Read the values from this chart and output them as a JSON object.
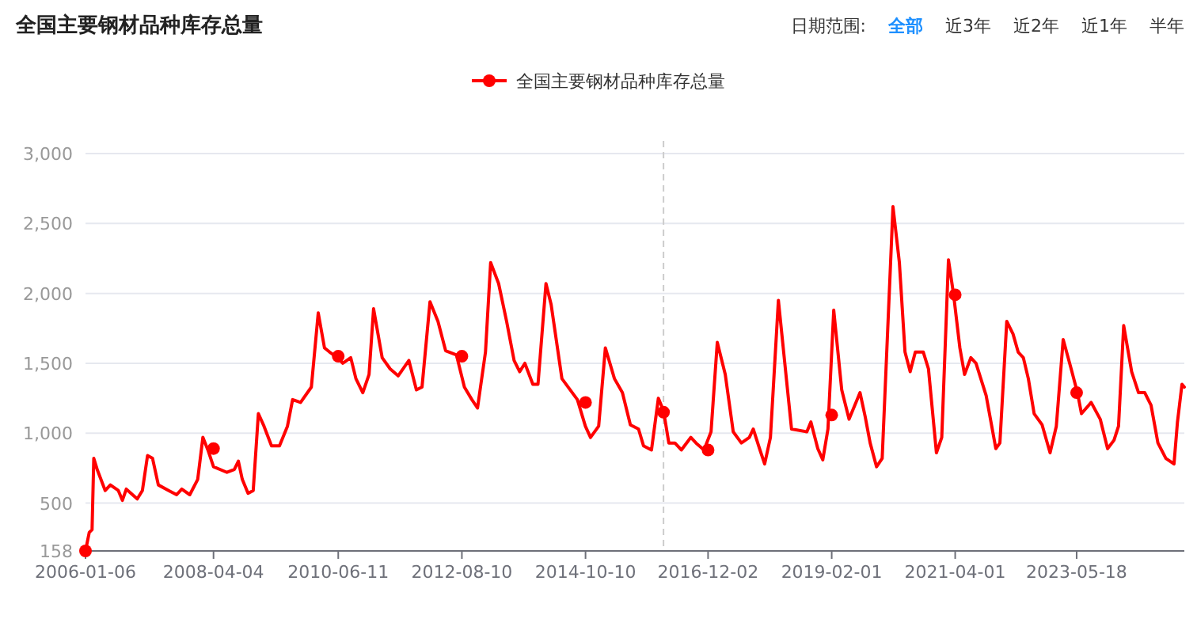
{
  "chart_data": {
    "type": "line",
    "title": "全国主要钢材品种库存总量",
    "annotations": [
      "日期范围:",
      "全部",
      "近3年",
      "近2年",
      "近1年",
      "半年"
    ],
    "legend": "top",
    "grid": "y",
    "line_style": "solid",
    "ylim": [
      158,
      3000
    ],
    "yticks": [
      158,
      500,
      {
        "value": 1000,
        "label": "1,000"
      },
      {
        "value": 1500,
        "label": "1,500"
      },
      {
        "value": 2000,
        "label": "2,000"
      },
      {
        "value": 2500,
        "label": "2,500"
      },
      {
        "value": 3000,
        "label": "3,000"
      }
    ],
    "xlim": [
      "2006-01-06",
      "2025-04-06"
    ],
    "xticks": [
      "2006-01-06",
      "2008-04-04",
      "2010-06-11",
      "2012-08-10",
      "2014-10-10",
      "2016-12-02",
      "2019-02-01",
      "2021-04-01",
      "2023-05-18"
    ],
    "ref_lines": [
      {
        "axis": "x",
        "value": "2016-02-21",
        "label": null,
        "color": "#cccccc",
        "line_style": "dashed"
      }
    ],
    "series": [
      {
        "name": "全国主要钢材品种库存总量",
        "color": "#ff0000",
        "x": [
          "2006-01-06",
          "2006-01-30",
          "2006-02-17",
          "2006-02-28",
          "2006-03-22",
          "2006-05-12",
          "2006-06-14",
          "2006-08-04",
          "2006-08-30",
          "2006-09-24",
          "2006-12-03",
          "2007-01-05",
          "2007-02-07",
          "2007-03-11",
          "2007-04-17",
          "2007-06-22",
          "2007-08-12",
          "2007-09-14",
          "2007-11-04",
          "2007-12-25",
          "2008-01-27",
          "2008-02-28",
          "2008-04-04",
          "2008-06-29",
          "2008-08-15",
          "2008-09-10",
          "2008-10-05",
          "2008-11-11",
          "2008-12-14",
          "2009-01-16",
          "2009-02-21",
          "2009-04-10",
          "2009-05-31",
          "2009-07-21",
          "2009-08-23",
          "2009-10-13",
          "2009-12-21",
          "2010-02-03",
          "2010-03-15",
          "2010-04-17",
          "2010-06-07",
          "2010-07-10",
          "2010-08-30",
          "2010-10-02",
          "2010-11-15",
          "2010-12-25",
          "2011-01-23",
          "2011-03-19",
          "2011-05-09",
          "2011-06-29",
          "2011-09-06",
          "2011-10-24",
          "2011-11-29",
          "2012-01-19",
          "2012-03-10",
          "2012-04-28",
          "2012-07-06",
          "2012-08-26",
          "2012-10-13",
          "2012-11-18",
          "2013-01-08",
          "2013-02-10",
          "2013-04-02",
          "2013-05-23",
          "2013-07-10",
          "2013-08-15",
          "2013-09-17",
          "2013-11-07",
          "2013-12-10",
          "2014-01-30",
          "2014-03-04",
          "2014-05-12",
          "2014-08-19",
          "2014-10-09",
          "2014-11-11",
          "2015-01-02",
          "2015-02-14",
          "2015-04-13",
          "2015-06-03",
          "2015-07-24",
          "2015-09-14",
          "2015-10-16",
          "2015-12-06",
          "2016-01-19",
          "2016-02-21",
          "2016-03-26",
          "2016-05-04",
          "2016-06-14",
          "2016-08-14",
          "2016-09-16",
          "2016-11-06",
          "2016-12-21",
          "2017-01-30",
          "2017-03-22",
          "2017-05-12",
          "2017-07-03",
          "2017-08-23",
          "2017-09-17",
          "2017-10-27",
          "2017-11-29",
          "2018-01-05",
          "2018-02-25",
          "2018-04-17",
          "2018-05-20",
          "2018-08-26",
          "2018-09-21",
          "2018-11-04",
          "2018-12-06",
          "2019-01-08",
          "2019-02-14",
          "2019-04-06",
          "2019-05-23",
          "2019-08-01",
          "2019-09-03",
          "2019-10-05",
          "2019-11-15",
          "2019-12-21",
          "2020-02-28",
          "2020-04-09",
          "2020-05-15",
          "2020-06-17",
          "2020-07-20",
          "2020-09-09",
          "2020-10-12",
          "2020-12-02",
          "2021-01-05",
          "2021-02-17",
          "2021-03-22",
          "2021-05-01",
          "2021-05-31",
          "2021-07-10",
          "2021-08-12",
          "2021-10-16",
          "2021-12-17",
          "2022-01-12",
          "2022-02-25",
          "2022-04-06",
          "2022-05-09",
          "2022-06-11",
          "2022-07-13",
          "2022-08-19",
          "2022-10-09",
          "2022-11-29",
          "2023-01-08",
          "2023-02-21",
          "2023-04-13",
          "2023-05-23",
          "2023-06-18",
          "2023-08-19",
          "2023-10-16",
          "2023-12-02",
          "2024-01-12",
          "2024-02-10",
          "2024-03-14",
          "2024-05-04",
          "2024-06-17",
          "2024-07-27",
          "2024-09-05",
          "2024-10-19",
          "2024-12-09",
          "2025-01-30",
          "2025-02-21",
          "2025-03-22",
          "2025-04-06"
        ],
        "values": [
          158,
          290,
          310,
          820,
          740,
          590,
          630,
          590,
          520,
          600,
          530,
          590,
          840,
          820,
          630,
          590,
          560,
          600,
          560,
          670,
          970,
          880,
          760,
          720,
          740,
          800,
          670,
          570,
          590,
          1140,
          1050,
          910,
          910,
          1050,
          1240,
          1220,
          1330,
          1860,
          1610,
          1580,
          1540,
          1500,
          1540,
          1390,
          1290,
          1420,
          1890,
          1540,
          1460,
          1410,
          1520,
          1310,
          1330,
          1940,
          1800,
          1590,
          1560,
          1330,
          1240,
          1180,
          1580,
          2220,
          2070,
          1800,
          1520,
          1440,
          1500,
          1350,
          1350,
          2070,
          1920,
          1390,
          1240,
          1050,
          970,
          1050,
          1610,
          1390,
          1290,
          1060,
          1030,
          910,
          880,
          1250,
          1160,
          930,
          930,
          880,
          970,
          930,
          880,
          1010,
          1650,
          1420,
          1010,
          930,
          970,
          1030,
          890,
          780,
          970,
          1950,
          1390,
          1030,
          1010,
          1080,
          890,
          810,
          1030,
          1880,
          1310,
          1100,
          1290,
          1120,
          930,
          760,
          820,
          2620,
          2220,
          1580,
          1440,
          1580,
          1580,
          1460,
          860,
          970,
          2240,
          1990,
          1610,
          1420,
          1540,
          1500,
          1270,
          890,
          930,
          1800,
          1710,
          1580,
          1540,
          1390,
          1140,
          1060,
          860,
          1050,
          1670,
          1460,
          1290,
          1140,
          1220,
          1100,
          890,
          950,
          1050,
          1770,
          1440,
          1290,
          1290,
          1200,
          930,
          820,
          780,
          1080,
          1350,
          1330
        ]
      },
      {
        "type": "scatter",
        "color": "#ff0000",
        "marker": "circle",
        "x": [
          "2006-01-06",
          "2008-04-04",
          "2010-06-11",
          "2012-08-10",
          "2014-10-10",
          "2016-02-21",
          "2016-12-02",
          "2019-02-01",
          "2021-04-01",
          "2023-05-18"
        ],
        "values": [
          158,
          890,
          1550,
          1550,
          1220,
          1150,
          880,
          1130,
          1990,
          1290
        ]
      }
    ]
  }
}
